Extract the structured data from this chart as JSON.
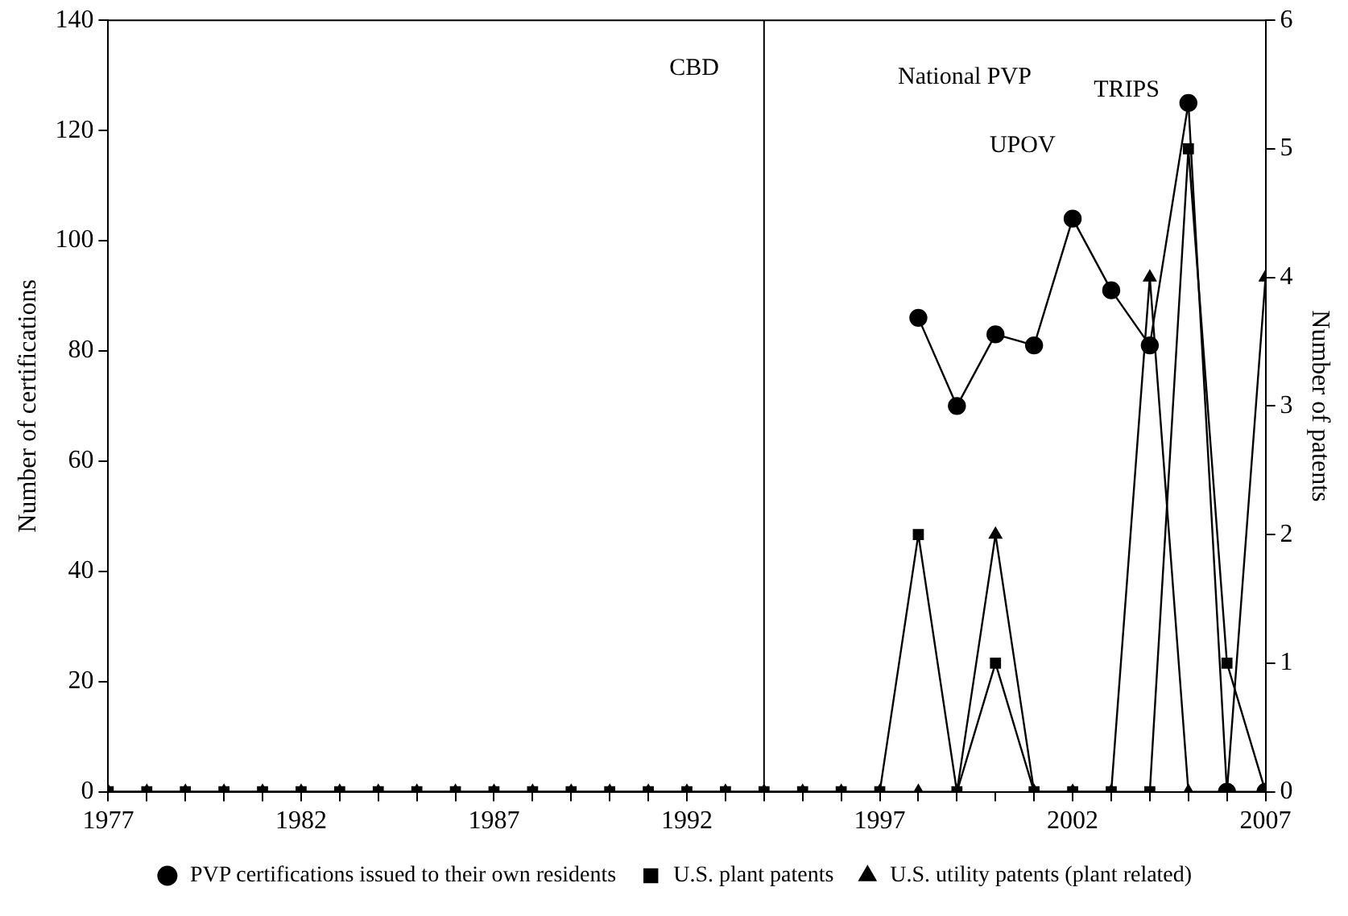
{
  "chart_data": {
    "type": "line",
    "xlabel": null,
    "ylabel": "Number of certifications",
    "y2label": "Number of patents",
    "x": [
      1977,
      1978,
      1979,
      1980,
      1981,
      1982,
      1983,
      1984,
      1985,
      1986,
      1987,
      1988,
      1989,
      1990,
      1991,
      1992,
      1993,
      1994,
      1995,
      1996,
      1997,
      1998,
      1999,
      2000,
      2001,
      2002,
      2003,
      2004,
      2005,
      2006,
      2007
    ],
    "series": [
      {
        "name": "PVP certifications issued to their own residents",
        "color": "#000000",
        "marker": "circle",
        "values": [
          null,
          null,
          null,
          null,
          null,
          null,
          null,
          null,
          null,
          null,
          null,
          null,
          null,
          null,
          null,
          null,
          null,
          null,
          null,
          null,
          null,
          86,
          70,
          83,
          81,
          104,
          91,
          81,
          125,
          0,
          0
        ]
      },
      {
        "name": "U.S. plant patents",
        "color": "#000000",
        "marker": "square",
        "axis": "y2",
        "values": [
          0,
          0,
          0,
          0,
          0,
          0,
          0,
          0,
          0,
          0,
          0,
          0,
          0,
          0,
          0,
          0,
          0,
          0,
          0,
          0,
          0,
          2,
          0,
          1,
          0,
          0,
          0,
          0,
          5,
          1,
          0
        ]
      },
      {
        "name": "U.S. utility patents (plant related)",
        "color": "#000000",
        "marker": "triangle",
        "axis": "y2",
        "values": [
          0,
          0,
          0,
          0,
          0,
          0,
          0,
          0,
          0,
          0,
          0,
          0,
          0,
          0,
          0,
          0,
          0,
          0,
          0,
          0,
          0,
          0,
          0,
          2,
          0,
          0,
          0,
          4,
          0,
          0,
          4
        ]
      }
    ],
    "xlim": [
      1977,
      2007
    ],
    "xticks": [
      1977,
      {
        "value": 1978,
        "label": null
      },
      {
        "value": 1979,
        "label": null
      },
      {
        "value": 1980,
        "label": null
      },
      {
        "value": 1981,
        "label": null
      },
      1982,
      {
        "value": 1983,
        "label": null
      },
      {
        "value": 1984,
        "label": null
      },
      {
        "value": 1985,
        "label": null
      },
      {
        "value": 1986,
        "label": null
      },
      1987,
      {
        "value": 1988,
        "label": null
      },
      {
        "value": 1989,
        "label": null
      },
      {
        "value": 1990,
        "label": null
      },
      {
        "value": 1991,
        "label": null
      },
      1992,
      {
        "value": 1993,
        "label": null
      },
      {
        "value": 1994,
        "label": null
      },
      {
        "value": 1995,
        "label": null
      },
      {
        "value": 1996,
        "label": null
      },
      1997,
      {
        "value": 1998,
        "label": null
      },
      {
        "value": 1999,
        "label": null
      },
      {
        "value": 2000,
        "label": null
      },
      {
        "value": 2001,
        "label": null
      },
      2002,
      {
        "value": 2003,
        "label": null
      },
      {
        "value": 2004,
        "label": null
      },
      {
        "value": 2005,
        "label": null
      },
      {
        "value": 2006,
        "label": null
      },
      2007
    ],
    "ylim": [
      0,
      140
    ],
    "yticks": [
      0,
      20,
      40,
      60,
      80,
      100,
      120,
      140
    ],
    "y2lim": [
      0,
      6
    ],
    "y2ticks": [
      0,
      1,
      2,
      3,
      4,
      5,
      6
    ],
    "ref_lines": [
      {
        "axis": "x",
        "value": 1994,
        "label": "CBD",
        "color": "#000000"
      }
    ],
    "annotations": [
      "National PVP",
      "UPOV",
      "TRIPS"
    ],
    "grid": false,
    "legend": "bottom",
    "line_style": "solid"
  }
}
